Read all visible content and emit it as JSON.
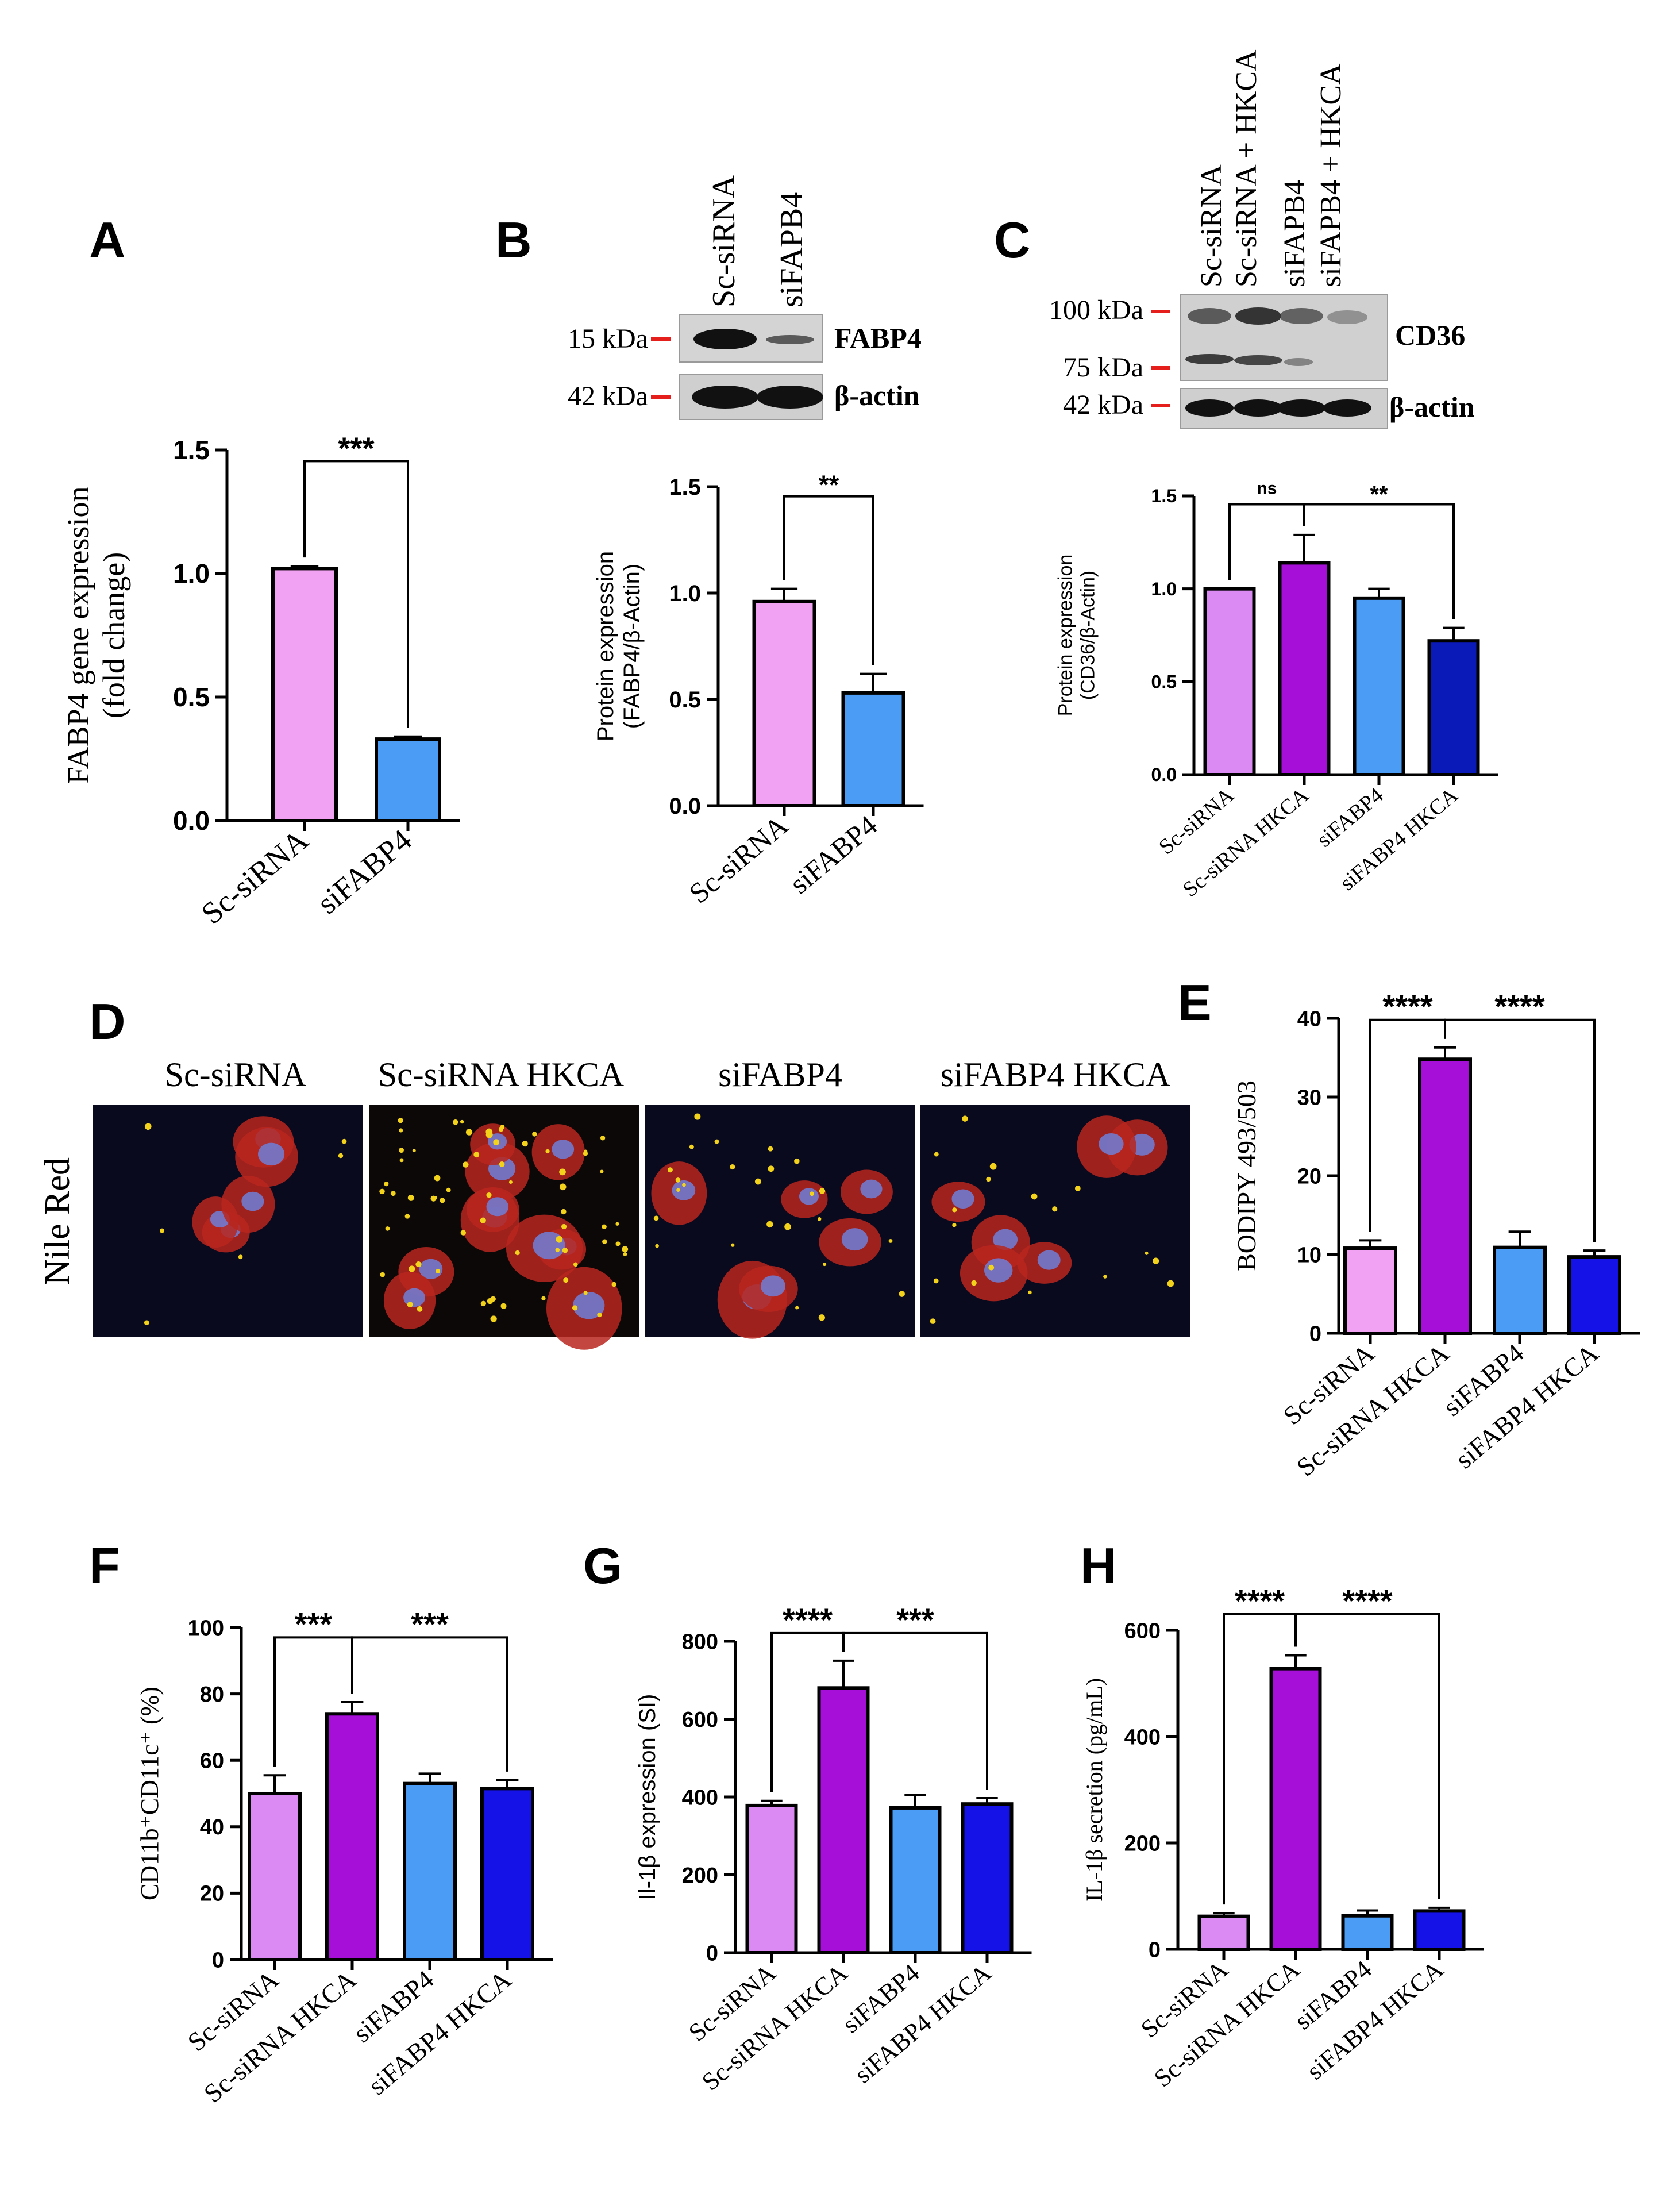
{
  "colors": {
    "light_pink": "#F2A2F2",
    "violet": "#DA8AF2",
    "magenta": "#A50FD8",
    "light_blue": "#4B9CF5",
    "blue": "#1512E8",
    "navy": "#0A1AB8",
    "marker_red": "#E5201C",
    "axis": "#000000"
  },
  "panels": {
    "A": "A",
    "B": "B",
    "C": "C",
    "D": "D",
    "E": "E",
    "F": "F",
    "G": "G",
    "H": "H"
  },
  "blot_b": {
    "lanes": [
      "Sc-siRNA",
      "siFAPB4"
    ],
    "bands": [
      {
        "marker": "15 kDa",
        "label": "FABP4",
        "intensity": [
          1.0,
          0.35
        ]
      },
      {
        "marker": "42 kDa",
        "label": "β-actin",
        "intensity": [
          1.0,
          1.0
        ]
      }
    ]
  },
  "blot_c": {
    "lanes": [
      "Sc-siRNA",
      "Sc-siRNA + HKCA",
      "siFAPB4",
      "siFAPB4 + HKCA"
    ],
    "markers": [
      "100 kDa",
      "75 kDa",
      "42 kDa"
    ],
    "labels": [
      "CD36",
      "β-actin"
    ],
    "cd36_intensity": [
      0.75,
      0.95,
      0.6,
      0.35
    ]
  },
  "micrographs": {
    "row_label": "Nile Red",
    "titles": [
      "Sc-siRNA",
      "Sc-siRNA HKCA",
      "siFABP4",
      "siFABP4 HKCA"
    ]
  },
  "chart_data": [
    {
      "panel": "A",
      "type": "bar",
      "categories": [
        "Sc-siRNA",
        "siFABP4"
      ],
      "values": [
        1.02,
        0.33
      ],
      "errors": [
        0.01,
        0.01
      ],
      "colors": [
        "light_pink",
        "light_blue"
      ],
      "ylabel": [
        "FABP4 gene expression",
        "(fold change)"
      ],
      "ylim": [
        0,
        1.5
      ],
      "yticks": [
        "0.0",
        "0.5",
        "1.0",
        "1.5"
      ],
      "brackets": [
        {
          "from": 0,
          "to": 1,
          "label": "***"
        }
      ]
    },
    {
      "panel": "B",
      "type": "bar",
      "categories": [
        "Sc-siRNA",
        "siFABP4"
      ],
      "values": [
        0.96,
        0.53
      ],
      "errors": [
        0.06,
        0.09
      ],
      "colors": [
        "light_pink",
        "light_blue"
      ],
      "ylabel": [
        "Protein expression",
        "(FABP4/β-Actin)"
      ],
      "ylim": [
        0,
        1.5
      ],
      "yticks": [
        "0.0",
        "0.5",
        "1.0",
        "1.5"
      ],
      "brackets": [
        {
          "from": 0,
          "to": 1,
          "label": "**"
        }
      ]
    },
    {
      "panel": "C",
      "type": "bar",
      "categories": [
        "Sc-siRNA",
        "Sc-siRNA HKCA",
        "siFABP4",
        "siFABP4 HKCA"
      ],
      "values": [
        1.0,
        1.14,
        0.95,
        0.72
      ],
      "errors": [
        0.0,
        0.15,
        0.05,
        0.07
      ],
      "colors": [
        "violet",
        "magenta",
        "light_blue",
        "navy"
      ],
      "ylabel": [
        "Protein expression",
        "(CD36/β-Actin)"
      ],
      "ylim": [
        0,
        1.5
      ],
      "yticks": [
        "0.0",
        "0.5",
        "1.0",
        "1.5"
      ],
      "brackets": [
        {
          "from": 0,
          "to": 1,
          "label": "ns"
        },
        {
          "from": 1,
          "to": 3,
          "label": "**"
        }
      ]
    },
    {
      "panel": "E",
      "type": "bar",
      "categories": [
        "Sc-siRNA",
        "Sc-siRNA HKCA",
        "siFABP4",
        "siFABP4 HKCA"
      ],
      "values": [
        10.8,
        34.8,
        10.9,
        9.7
      ],
      "errors": [
        1.0,
        1.5,
        2.0,
        0.8
      ],
      "colors": [
        "light_pink",
        "magenta",
        "light_blue",
        "blue"
      ],
      "ylabel": [
        "BODIPY 493/503"
      ],
      "ylim": [
        0,
        40
      ],
      "yticks": [
        "0",
        "10",
        "20",
        "30",
        "40"
      ],
      "brackets": [
        {
          "from": 0,
          "to": 1,
          "label": "****"
        },
        {
          "from": 1,
          "to": 3,
          "label": "****"
        }
      ]
    },
    {
      "panel": "F",
      "type": "bar",
      "categories": [
        "Sc-siRNA",
        "Sc-siRNA HKCA",
        "siFABP4",
        "siFABP4 HKCA"
      ],
      "values": [
        50,
        74,
        53,
        51.5
      ],
      "errors": [
        5.5,
        3.5,
        3,
        2.5
      ],
      "colors": [
        "violet",
        "magenta",
        "light_blue",
        "blue"
      ],
      "ylabel": [
        "CD11b⁺CD11c⁺ (%)"
      ],
      "ylim": [
        0,
        100
      ],
      "yticks": [
        "0",
        "20",
        "40",
        "60",
        "80",
        "100"
      ],
      "brackets": [
        {
          "from": 0,
          "to": 1,
          "label": "***"
        },
        {
          "from": 1,
          "to": 3,
          "label": "***"
        }
      ]
    },
    {
      "panel": "G",
      "type": "bar",
      "categories": [
        "Sc-siRNA",
        "Sc-siRNA HKCA",
        "siFABP4",
        "siFABP4 HKCA"
      ],
      "values": [
        378,
        680,
        372,
        382
      ],
      "errors": [
        12,
        70,
        33,
        15
      ],
      "colors": [
        "violet",
        "magenta",
        "light_blue",
        "blue"
      ],
      "ylabel": [
        "Il-1β  expression (SI)"
      ],
      "ylim": [
        0,
        800
      ],
      "yticks": [
        "0",
        "200",
        "400",
        "600",
        "800"
      ],
      "brackets": [
        {
          "from": 0,
          "to": 1,
          "label": "****"
        },
        {
          "from": 1,
          "to": 3,
          "label": "***"
        }
      ]
    },
    {
      "panel": "H",
      "type": "bar",
      "categories": [
        "Sc-siRNA",
        "Sc-siRNA HKCA",
        "siFABP4",
        "siFABP4 HKCA"
      ],
      "values": [
        62,
        528,
        63,
        72
      ],
      "errors": [
        6,
        25,
        10,
        6
      ],
      "colors": [
        "violet",
        "magenta",
        "light_blue",
        "blue"
      ],
      "ylabel": [
        "IL-1β secretion (pg/mL)"
      ],
      "ylim": [
        0,
        650
      ],
      "yticks": [
        "0",
        "200",
        "400",
        "600"
      ],
      "brackets": [
        {
          "from": 0,
          "to": 1,
          "label": "****"
        },
        {
          "from": 1,
          "to": 3,
          "label": "****"
        }
      ]
    }
  ]
}
